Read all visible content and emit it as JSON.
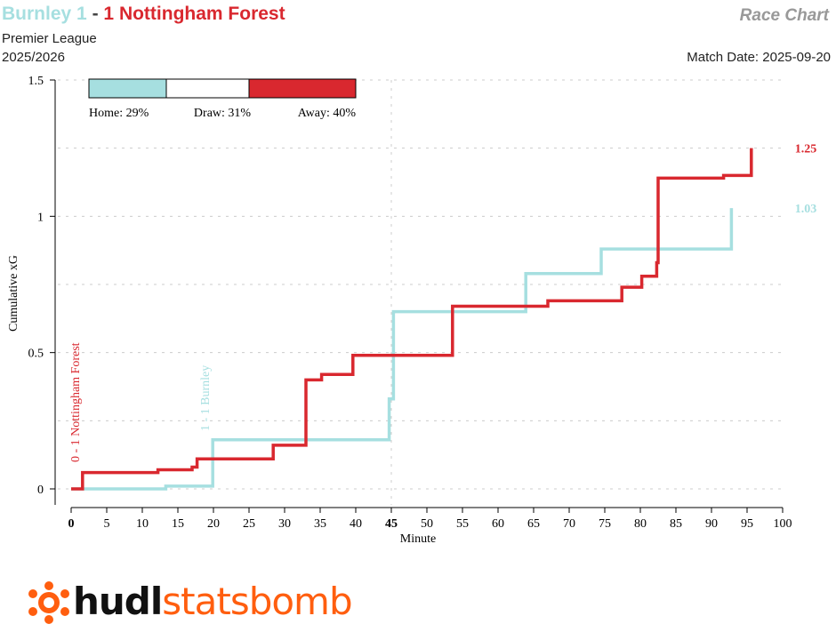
{
  "header": {
    "home_team": "Burnley",
    "home_score": "1",
    "separator": "-",
    "away_score": "1",
    "away_team": "Nottingham Forest",
    "competition": "Premier League",
    "season": "2025/2026",
    "chart_kind": "Race Chart",
    "match_date": "Match Date: 2025-09-20"
  },
  "colors": {
    "home": "#a6dfe0",
    "away": "#d9282f",
    "draw": "#ffffff",
    "brand": "#ff5e0f"
  },
  "logo": {
    "part1": "hudl",
    "part2": "statsbomb"
  },
  "chart_data": {
    "type": "line",
    "xlabel": "Minute",
    "ylabel": "Cumulative xG",
    "xlim": [
      0,
      100
    ],
    "ylim": [
      0,
      1.5
    ],
    "x_ticks": [
      0,
      5,
      10,
      15,
      20,
      25,
      30,
      35,
      40,
      45,
      50,
      55,
      60,
      65,
      70,
      75,
      80,
      85,
      90,
      95,
      100
    ],
    "y_ticks": [
      0,
      0.5,
      1,
      1.5
    ],
    "y_tick_labels": [
      "0",
      "0.5",
      "1",
      "1.5"
    ],
    "grid": "horizontal dashed",
    "halftime_minute": 45,
    "series": [
      {
        "name": "Burnley",
        "final_label": "1.03",
        "steps": [
          [
            0,
            0
          ],
          [
            13.3,
            0.01
          ],
          [
            19.9,
            0.18
          ],
          [
            44.7,
            0.33
          ],
          [
            45.3,
            0.65
          ],
          [
            58.2,
            0.65
          ],
          [
            63.9,
            0.79
          ],
          [
            74.5,
            0.88
          ],
          [
            92.8,
            1.03
          ]
        ]
      },
      {
        "name": "Nottingham Forest",
        "final_label": "1.25",
        "steps": [
          [
            0,
            0
          ],
          [
            1.6,
            0.06
          ],
          [
            12.2,
            0.07
          ],
          [
            17.0,
            0.08
          ],
          [
            17.7,
            0.11
          ],
          [
            28.4,
            0.16
          ],
          [
            33.0,
            0.4
          ],
          [
            35.2,
            0.42
          ],
          [
            39.6,
            0.49
          ],
          [
            53.6,
            0.67
          ],
          [
            67.0,
            0.69
          ],
          [
            77.4,
            0.74
          ],
          [
            80.2,
            0.78
          ],
          [
            82.3,
            0.83
          ],
          [
            82.5,
            1.14
          ],
          [
            91.7,
            1.15
          ],
          [
            95.6,
            1.25
          ]
        ]
      }
    ],
    "annotations": [
      {
        "minute": 1.6,
        "text": "0 - 1 Nottingham Forest",
        "team": "away"
      },
      {
        "minute": 19.9,
        "text": "1 - 1 Burnley",
        "team": "home"
      }
    ],
    "probabilities": {
      "home": "Home: 29%",
      "draw": "Draw: 31%",
      "away": "Away: 40%",
      "home_pct": 29,
      "draw_pct": 31,
      "away_pct": 40
    }
  }
}
